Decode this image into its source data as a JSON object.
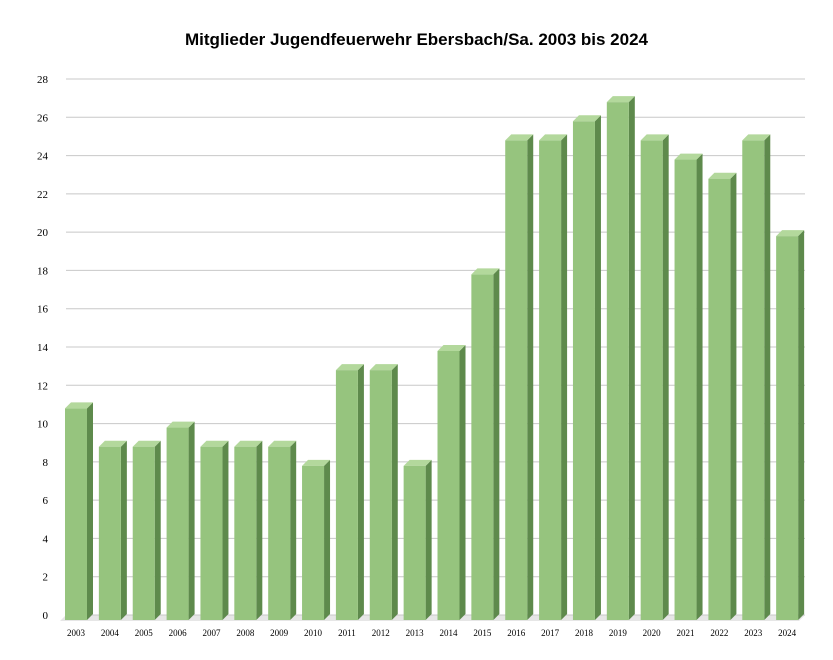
{
  "chart_data": {
    "type": "bar",
    "title": "Mitglieder Jugendfeuerwehr Ebersbach/Sa. 2003 bis 2024",
    "xlabel": "",
    "ylabel": "",
    "ylim": [
      0,
      28
    ],
    "yticks": [
      0,
      2,
      4,
      6,
      8,
      10,
      12,
      14,
      16,
      18,
      20,
      22,
      24,
      26,
      28
    ],
    "grid": true,
    "categories": [
      "2003",
      "2004",
      "2005",
      "2006",
      "2007",
      "2008",
      "2009",
      "2010",
      "2011",
      "2012",
      "2013",
      "2014",
      "2015",
      "2016",
      "2017",
      "2018",
      "2019",
      "2020",
      "2021",
      "2022",
      "2023",
      "2024"
    ],
    "values": [
      11,
      9,
      9,
      10,
      9,
      9,
      9,
      8,
      13,
      13,
      8,
      14,
      18,
      25,
      25,
      26,
      27,
      25,
      24,
      23,
      25,
      20
    ],
    "colors": {
      "front": "#96c47e",
      "top": "#b3d89c",
      "side": "#5e8a4c",
      "grid": "#c8c8c8"
    }
  }
}
